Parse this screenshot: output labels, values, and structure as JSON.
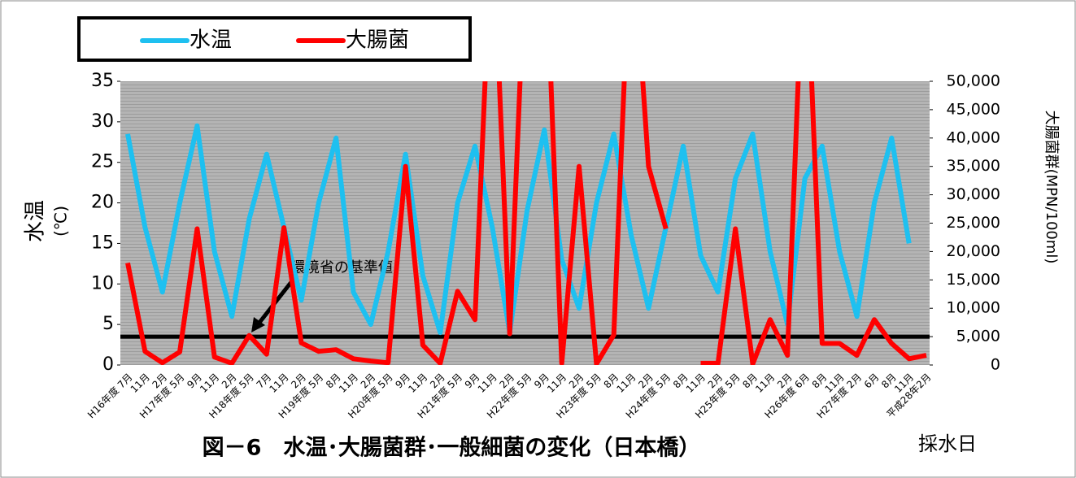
{
  "chart_data": {
    "type": "line",
    "title": "図－6　水温･大腸菌群･一般細菌の変化（日本橋）",
    "x_label": "採水日",
    "y_label": "水温",
    "y_unit": "(℃)",
    "y2_label": "大腸菌群(MPN/100ml)",
    "categories": [
      "H16年度 7月",
      "11月",
      "2月",
      "H17年度 5月",
      "9月",
      "11月",
      "2月",
      "H18年度 5月",
      "7月",
      "11月",
      "2月",
      "H19年度 5月",
      "8月",
      "11月",
      "2月",
      "H20年度 5月",
      "9月",
      "11月",
      "2月",
      "H21年度 5月",
      "9月",
      "11月",
      "2月",
      "H22年度 5月",
      "9月",
      "11月",
      "2月",
      "H23年度 5月",
      "8月",
      "11月",
      "2月",
      "H24年度 5月",
      "8月",
      "11月",
      "2月",
      "H25年度 5月",
      "8月",
      "11月",
      "2月",
      "H26年度 6月",
      "8月",
      "11月",
      "H27年度 2月",
      "6月",
      "8月",
      "11月",
      "平成28年2月"
    ],
    "series": [
      {
        "name": "水温",
        "color": "#1ec0f0",
        "axis": "y",
        "values": [
          28.5,
          17,
          9,
          20,
          29.5,
          14,
          6,
          18,
          26,
          17,
          8,
          20,
          28,
          9,
          5,
          14,
          26,
          11,
          4,
          20,
          27,
          17,
          4,
          19,
          29,
          13,
          7,
          20,
          28.5,
          16,
          7,
          17,
          27,
          13.5,
          9,
          23,
          28.5,
          14,
          5,
          23,
          27,
          14,
          6,
          20,
          28,
          15,
          null
        ]
      },
      {
        "name": "大腸菌",
        "color": "#ff0000",
        "axis": "y2",
        "values": [
          18000,
          2400,
          400,
          2300,
          24000,
          1400,
          300,
          5200,
          1900,
          24200,
          3900,
          2400,
          2700,
          1100,
          700,
          400,
          35000,
          3500,
          300,
          13000,
          8000,
          80000,
          5500,
          80000,
          80000,
          300,
          35000,
          200,
          5300,
          80000,
          35000,
          24000,
          null,
          300,
          300,
          24000,
          200,
          8000,
          1700,
          80000,
          3800,
          3800,
          1700,
          8000,
          3800,
          1100,
          1700
        ]
      }
    ],
    "reference_line": {
      "value": 5000,
      "axis": "y2",
      "label": "環境省の基準値"
    },
    "ylim": [
      0,
      35
    ],
    "yticks": [
      0,
      5,
      10,
      15,
      20,
      25,
      30,
      35
    ],
    "y2lim": [
      0,
      50000
    ],
    "y2ticks": [
      0,
      {
        "value": 5000,
        "label": "5,000"
      },
      {
        "value": 10000,
        "label": "10,000"
      },
      {
        "value": 15000,
        "label": "15,000"
      },
      {
        "value": 20000,
        "label": "20,000"
      },
      {
        "value": 25000,
        "label": "25,000"
      },
      {
        "value": 30000,
        "label": "30,000"
      },
      {
        "value": 35000,
        "label": "35,000"
      },
      {
        "value": 40000,
        "label": "40,000"
      },
      {
        "value": 45000,
        "label": "45,000"
      },
      {
        "value": 50000,
        "label": "50,000"
      }
    ]
  }
}
